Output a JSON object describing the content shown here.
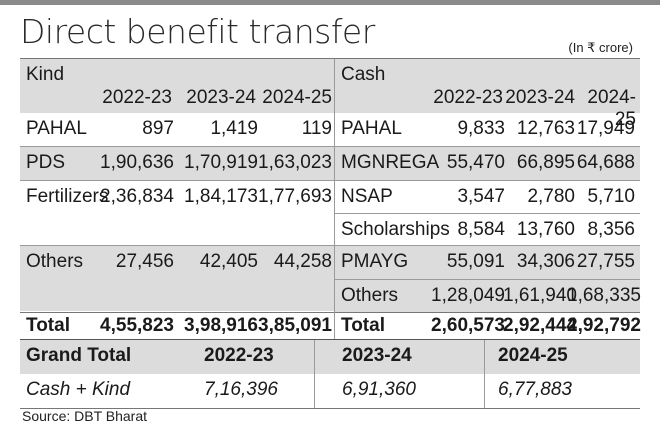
{
  "title": "Direct benefit transfer",
  "unit": "(In ₹ crore)",
  "source": "Source: DBT Bharat",
  "chart_data": {
    "type": "table",
    "title": "Direct benefit transfer",
    "unit": "(In ₹ crore)",
    "years": [
      "2022-23",
      "2023-24",
      "2024-25"
    ],
    "kind": {
      "label": "Kind",
      "rows": [
        {
          "name": "PAHAL",
          "values": [
            "897",
            "1,419",
            "119"
          ]
        },
        {
          "name": "PDS",
          "values": [
            "1,90,636",
            "1,70,919",
            "1,63,023"
          ]
        },
        {
          "name": "Fertilizers",
          "values": [
            "2,36,834",
            "1,84,173",
            "1,77,693"
          ]
        },
        {
          "name": "Others",
          "values": [
            "27,456",
            "42,405",
            "44,258"
          ]
        }
      ],
      "total": {
        "name": "Total",
        "values": [
          "4,55,823",
          "3,98,916",
          "3,85,091"
        ]
      }
    },
    "cash": {
      "label": "Cash",
      "rows": [
        {
          "name": "PAHAL",
          "values": [
            "9,833",
            "12,763",
            "17,949"
          ]
        },
        {
          "name": "MGNREGA",
          "values": [
            "55,470",
            "66,895",
            "64,688"
          ]
        },
        {
          "name": "NSAP",
          "values": [
            "3,547",
            "2,780",
            "5,710"
          ]
        },
        {
          "name": "Scholarships",
          "values": [
            "8,584",
            "13,760",
            "8,356"
          ]
        },
        {
          "name": "PMAYG",
          "values": [
            "55,091",
            "34,306",
            "27,755"
          ]
        },
        {
          "name": "Others",
          "values": [
            "1,28,049",
            "1,61,940",
            "1,68,335"
          ]
        }
      ],
      "total": {
        "name": "Total",
        "values": [
          "2,60,573",
          "2,92,444",
          "2,92,792"
        ]
      }
    },
    "grand_total": {
      "label": "Grand Total",
      "row_label": "Cash + Kind",
      "years": [
        "2022-23",
        "2023-24",
        "2024-25"
      ],
      "values": [
        "7,16,396",
        "6,91,360",
        "6,77,883"
      ]
    }
  }
}
